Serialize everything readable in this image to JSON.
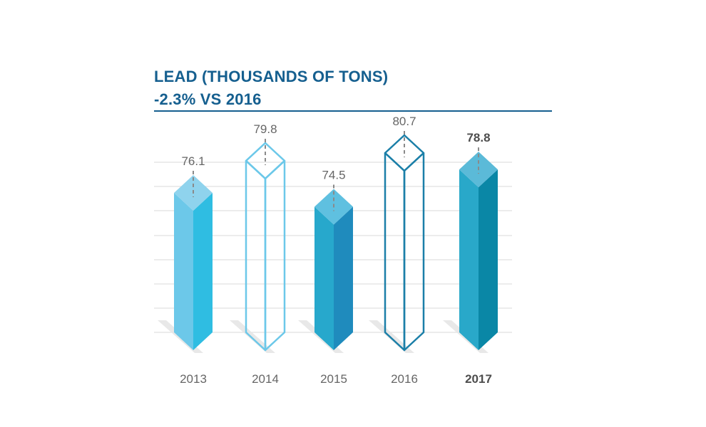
{
  "title": "LEAD (THOUSANDS OF TONS)",
  "subtitle": "-2.3% VS 2016",
  "colors": {
    "title": "#155f8f",
    "rule": "#155f8f",
    "gridline": "#d9d9d9",
    "value_label": "#666666",
    "connector": "#8a8a8a"
  },
  "chart_data": {
    "type": "bar",
    "title": "LEAD (THOUSANDS OF TONS)",
    "subtitle": "-2.3% VS 2016",
    "categories": [
      "2013",
      "2014",
      "2015",
      "2016",
      "2017"
    ],
    "values": [
      76.1,
      79.8,
      74.5,
      80.7,
      78.8
    ],
    "value_labels": [
      "76.1",
      "79.8",
      "74.5",
      "80.7",
      "78.8"
    ],
    "highlight": "2017",
    "bar_styles": [
      {
        "style": "solid",
        "top": "#8fd3ed",
        "left": "#6cc8e9",
        "right": "#2fbde2"
      },
      {
        "style": "outline",
        "stroke": "#6cc8e9"
      },
      {
        "style": "solid",
        "top": "#5fc0e0",
        "left": "#27a8cc",
        "right": "#1f8bbd"
      },
      {
        "style": "outline",
        "stroke": "#1b7fa8"
      },
      {
        "style": "solid",
        "top": "#5bbad8",
        "left": "#29a8c9",
        "right": "#0a87a6"
      }
    ],
    "grid": true,
    "xlabel": "",
    "ylabel": ""
  }
}
